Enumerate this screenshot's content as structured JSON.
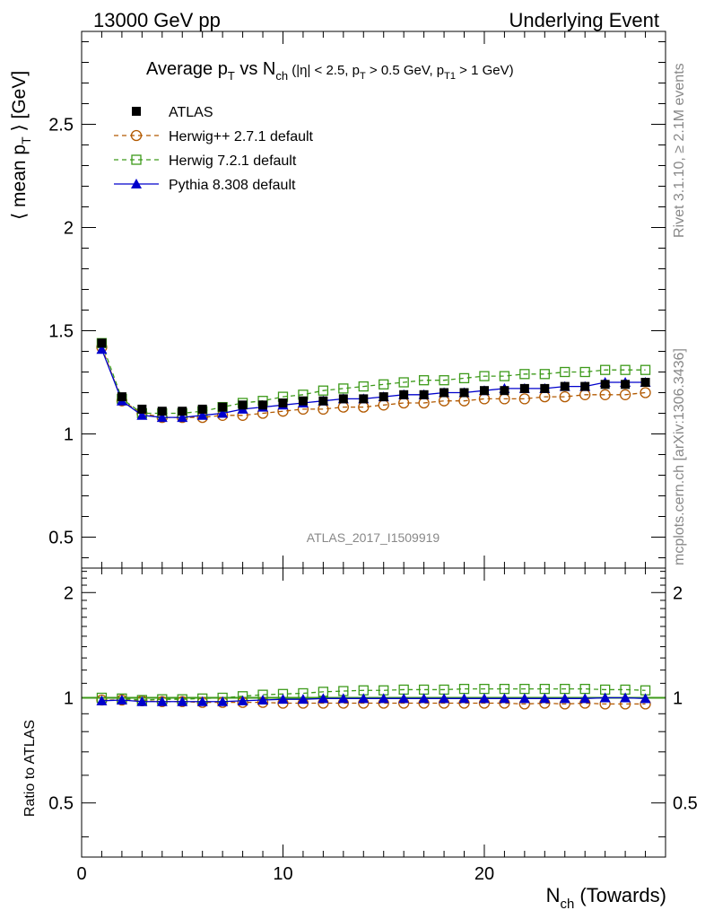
{
  "header": {
    "left": "13000 GeV pp",
    "right": "Underlying Event"
  },
  "side_labels": {
    "rivet": "Rivet 3.1.10, ≥ 2.1M events",
    "mcplots": "mcplots.cern.ch [arXiv:1306.3436]"
  },
  "watermark": "ATLAS_2017_I1509919",
  "colors": {
    "atlas": "#000000",
    "herwigpp": "#b25900",
    "herwig7": "#3d9a1a",
    "pythia": "#0000cc"
  },
  "chart_data": [
    {
      "type": "line",
      "title_parts": {
        "a": "Average p",
        "a_sub": "T",
        "b": " vs N",
        "b_sub": "ch",
        "c": " (|η| < 2.5, p",
        "c_sub": "T",
        "d": " > 0.5 GeV, p",
        "d_sub": "T1",
        "e": " > 1 GeV)"
      },
      "ylabel_parts": {
        "a": "⟨ mean p",
        "a_sub": "T",
        "b": " ⟩ [GeV]"
      },
      "xlim": [
        0,
        29
      ],
      "ylim": [
        0.35,
        2.95
      ],
      "yticks": [
        0.5,
        1,
        1.5,
        2,
        2.5
      ],
      "ytick_labels": [
        "0.5",
        "1",
        "1.5",
        "2",
        "2.5"
      ],
      "legend_position": "top-left",
      "x": [
        1,
        2,
        3,
        4,
        5,
        6,
        7,
        8,
        9,
        10,
        11,
        12,
        13,
        14,
        15,
        16,
        17,
        18,
        19,
        20,
        21,
        22,
        23,
        24,
        25,
        26,
        27,
        28
      ],
      "series": [
        {
          "name": "ATLAS",
          "style": "square-filled",
          "values": [
            1.44,
            1.18,
            1.12,
            1.11,
            1.11,
            1.12,
            1.13,
            1.14,
            1.14,
            1.15,
            1.16,
            1.16,
            1.17,
            1.17,
            1.18,
            1.19,
            1.19,
            1.2,
            1.2,
            1.21,
            1.21,
            1.22,
            1.22,
            1.23,
            1.23,
            1.24,
            1.24,
            1.25
          ]
        },
        {
          "name": "Herwig++ 2.7.1 default",
          "style": "circle-open-dashed",
          "values": [
            1.42,
            1.16,
            1.1,
            1.08,
            1.08,
            1.08,
            1.09,
            1.09,
            1.1,
            1.11,
            1.12,
            1.12,
            1.13,
            1.13,
            1.14,
            1.15,
            1.15,
            1.16,
            1.16,
            1.17,
            1.17,
            1.17,
            1.18,
            1.18,
            1.19,
            1.19,
            1.19,
            1.2
          ]
        },
        {
          "name": "Herwig 7.2.1 default",
          "style": "square-open-dashed",
          "values": [
            1.44,
            1.17,
            1.1,
            1.1,
            1.1,
            1.11,
            1.13,
            1.15,
            1.16,
            1.18,
            1.19,
            1.21,
            1.22,
            1.23,
            1.24,
            1.25,
            1.26,
            1.26,
            1.27,
            1.28,
            1.28,
            1.29,
            1.29,
            1.3,
            1.3,
            1.31,
            1.31,
            1.31
          ]
        },
        {
          "name": "Pythia 8.308 default",
          "style": "triangle-filled-solid",
          "values": [
            1.41,
            1.16,
            1.09,
            1.08,
            1.08,
            1.09,
            1.1,
            1.12,
            1.13,
            1.14,
            1.15,
            1.16,
            1.17,
            1.17,
            1.18,
            1.19,
            1.19,
            1.2,
            1.2,
            1.21,
            1.22,
            1.22,
            1.22,
            1.23,
            1.23,
            1.25,
            1.25,
            1.25
          ]
        }
      ]
    },
    {
      "type": "line",
      "ylabel": "Ratio to ATLAS",
      "xlabel_parts": {
        "a": "N",
        "a_sub": "ch",
        "b": " (Towards)"
      },
      "xlim": [
        0,
        29
      ],
      "xticks": [
        0,
        10,
        20
      ],
      "xtick_labels": [
        "0",
        "10",
        "20"
      ],
      "ylim": [
        0.35,
        2.35
      ],
      "yticks": [
        0.5,
        1,
        2
      ],
      "ytick_labels": [
        "0.5",
        "1",
        "2"
      ],
      "reference_line": 1,
      "x": [
        1,
        2,
        3,
        4,
        5,
        6,
        7,
        8,
        9,
        10,
        11,
        12,
        13,
        14,
        15,
        16,
        17,
        18,
        19,
        20,
        21,
        22,
        23,
        24,
        25,
        26,
        27,
        28
      ],
      "series": [
        {
          "name": "Herwig++ 2.7.1 default",
          "values": [
            0.985,
            0.985,
            0.98,
            0.975,
            0.975,
            0.97,
            0.97,
            0.97,
            0.97,
            0.965,
            0.965,
            0.965,
            0.965,
            0.965,
            0.965,
            0.965,
            0.965,
            0.965,
            0.965,
            0.965,
            0.965,
            0.96,
            0.965,
            0.96,
            0.965,
            0.96,
            0.96,
            0.96
          ]
        },
        {
          "name": "Herwig 7.2.1 default",
          "values": [
            1.0,
            0.995,
            0.985,
            0.99,
            0.99,
            0.995,
            1.0,
            1.01,
            1.02,
            1.025,
            1.03,
            1.04,
            1.045,
            1.05,
            1.05,
            1.055,
            1.055,
            1.055,
            1.06,
            1.06,
            1.06,
            1.06,
            1.06,
            1.06,
            1.06,
            1.055,
            1.055,
            1.05
          ]
        },
        {
          "name": "Pythia 8.308 default",
          "values": [
            0.98,
            0.985,
            0.975,
            0.975,
            0.975,
            0.975,
            0.975,
            0.98,
            0.985,
            0.99,
            0.99,
            0.995,
            0.995,
            0.995,
            0.995,
            0.995,
            0.995,
            0.995,
            0.995,
            0.995,
            0.995,
            0.995,
            0.995,
            0.995,
            0.995,
            1.0,
            1.0,
            0.995
          ]
        }
      ]
    }
  ]
}
